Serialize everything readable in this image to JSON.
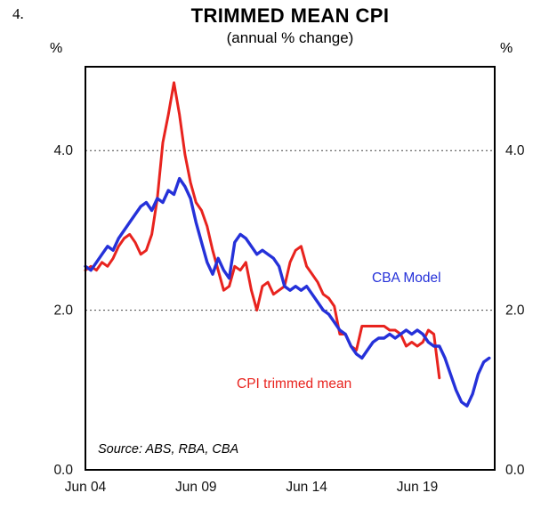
{
  "figure": {
    "number": "4.",
    "title": "TRIMMED MEAN CPI",
    "subtitle": "(annual % change)",
    "unit": "%",
    "source": "Source: ABS, RBA, CBA",
    "series_labels": {
      "cba": "CBA Model",
      "cpi": "CPI trimmed mean"
    }
  },
  "chart_data": {
    "type": "line",
    "title": "TRIMMED MEAN CPI",
    "subtitle": "(annual % change)",
    "xlabel": "",
    "ylabel": "%",
    "xlim": [
      2004.5,
      2023.0
    ],
    "ylim": [
      0,
      5.05
    ],
    "grid": "dotted-horizontal",
    "grid_values": [
      2.0,
      4.0
    ],
    "yticks": [
      {
        "value": 0.0,
        "label": "0.0"
      },
      {
        "value": 2.0,
        "label": "2.0"
      },
      {
        "value": 4.0,
        "label": "4.0"
      }
    ],
    "xticks": [
      {
        "value": 2004.5,
        "label": "Jun 04"
      },
      {
        "value": 2009.5,
        "label": "Jun 09"
      },
      {
        "value": 2014.5,
        "label": "Jun 14"
      },
      {
        "value": 2019.5,
        "label": "Jun 19"
      }
    ],
    "x_start": 2004.5,
    "x_step": 0.25,
    "x_unit": "decimal-year-quarterly",
    "legend_position": "inline-annotations",
    "series": [
      {
        "name": "CPI trimmed mean",
        "color": "#e8231e",
        "width": 3,
        "values": [
          2.5,
          2.55,
          2.5,
          2.6,
          2.55,
          2.65,
          2.8,
          2.9,
          2.95,
          2.85,
          2.7,
          2.75,
          2.95,
          3.4,
          4.1,
          4.45,
          4.85,
          4.45,
          3.95,
          3.6,
          3.35,
          3.25,
          3.05,
          2.75,
          2.5,
          2.25,
          2.3,
          2.55,
          2.5,
          2.6,
          2.25,
          2.0,
          2.3,
          2.35,
          2.2,
          2.25,
          2.3,
          2.6,
          2.75,
          2.8,
          2.55,
          2.45,
          2.35,
          2.2,
          2.15,
          2.05,
          1.7,
          1.7,
          1.55,
          1.5,
          1.8,
          1.8,
          1.8,
          1.8,
          1.8,
          1.75,
          1.75,
          1.7,
          1.55,
          1.6,
          1.55,
          1.6,
          1.75,
          1.7,
          1.15
        ]
      },
      {
        "name": "CBA Model",
        "color": "#2531d9",
        "width": 3.4,
        "values": [
          2.55,
          2.5,
          2.6,
          2.7,
          2.8,
          2.75,
          2.9,
          3.0,
          3.1,
          3.2,
          3.3,
          3.35,
          3.25,
          3.4,
          3.35,
          3.5,
          3.45,
          3.65,
          3.55,
          3.4,
          3.1,
          2.85,
          2.6,
          2.45,
          2.65,
          2.5,
          2.4,
          2.85,
          2.95,
          2.9,
          2.8,
          2.7,
          2.75,
          2.7,
          2.65,
          2.55,
          2.3,
          2.25,
          2.3,
          2.25,
          2.3,
          2.2,
          2.1,
          2.0,
          1.95,
          1.85,
          1.75,
          1.7,
          1.55,
          1.45,
          1.4,
          1.5,
          1.6,
          1.65,
          1.65,
          1.7,
          1.65,
          1.7,
          1.75,
          1.7,
          1.75,
          1.7,
          1.6,
          1.55,
          1.55,
          1.4,
          1.2,
          1.0,
          0.85,
          0.8,
          0.95,
          1.2,
          1.35,
          1.4
        ]
      }
    ]
  }
}
